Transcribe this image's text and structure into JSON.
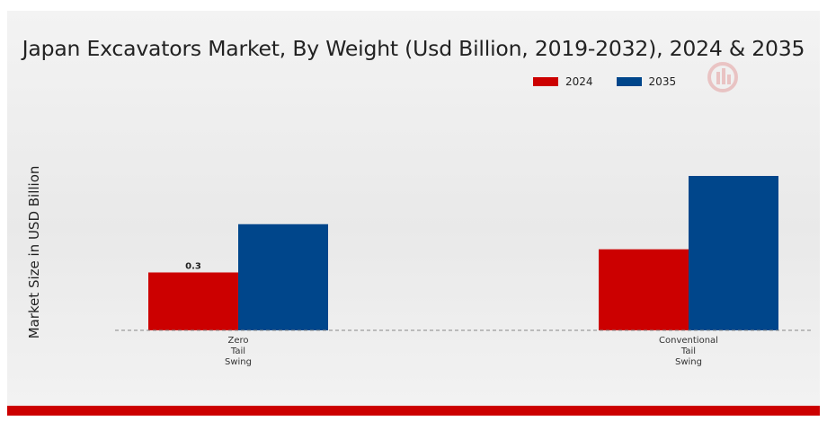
{
  "chart_data": {
    "type": "bar",
    "title": "Japan Excavators Market, By Weight (Usd Billion, 2019-2032), 2024 & 2035",
    "xlabel": "",
    "ylabel": "Market Size in USD Billion",
    "categories": [
      "Zero\nTail\nSwing",
      "Conventional\nTail\nSwing"
    ],
    "series": [
      {
        "name": "2024",
        "color": "#cc0000",
        "values": [
          0.3,
          0.42
        ]
      },
      {
        "name": "2035",
        "color": "#00468b",
        "values": [
          0.55,
          0.8
        ]
      }
    ],
    "data_labels": [
      {
        "series": 0,
        "category": 0,
        "text": "0.3"
      }
    ],
    "ylim": [
      0,
      1.0
    ],
    "grid": false,
    "legend_position": "top-right"
  },
  "colors": {
    "accent": "#cc0000",
    "series_2024": "#cc0000",
    "series_2035": "#00468b",
    "watermark": "logo-watermark"
  }
}
